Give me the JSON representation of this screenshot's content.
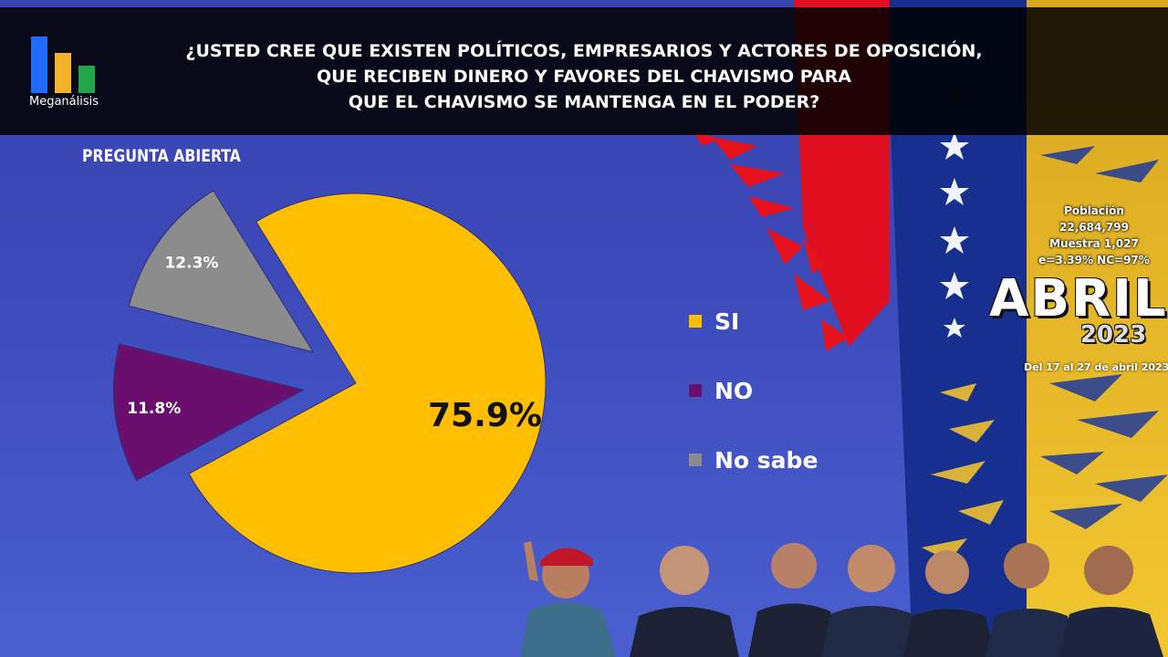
{
  "brand": {
    "logo_text": "Meganálisis"
  },
  "header": {
    "question_lines": [
      "¿USTED CREE QUE EXISTEN POLÍTICOS, EMPRESARIOS Y ACTORES DE OPOSICIÓN,",
      "QUE RECIBEN DINERO Y FAVORES DEL CHAVISMO PARA",
      "QUE EL CHAVISMO SE MANTENGA EN EL PODER?"
    ]
  },
  "subtitle": "PREGUNTA ABIERTA",
  "survey": {
    "population_label": "Población",
    "population_value": "22,684,799",
    "sample": "Muestra 1,027",
    "error_conf": "e=3.39%  NC=97%",
    "month": "ABRIL",
    "year": "2023",
    "period": "Del 17 al 27 de abril 2023"
  },
  "chart_data": {
    "type": "pie",
    "title": "",
    "slices": [
      {
        "label": "SI",
        "value": 75.9,
        "display": "75.9%",
        "color": "#ffbe00"
      },
      {
        "label": "NO",
        "value": 11.8,
        "display": "11.8%",
        "color": "#6a0f6e"
      },
      {
        "label": "No sabe",
        "value": 12.3,
        "display": "12.3%",
        "color": "#8c8c8c"
      }
    ],
    "legend_position": "right"
  }
}
